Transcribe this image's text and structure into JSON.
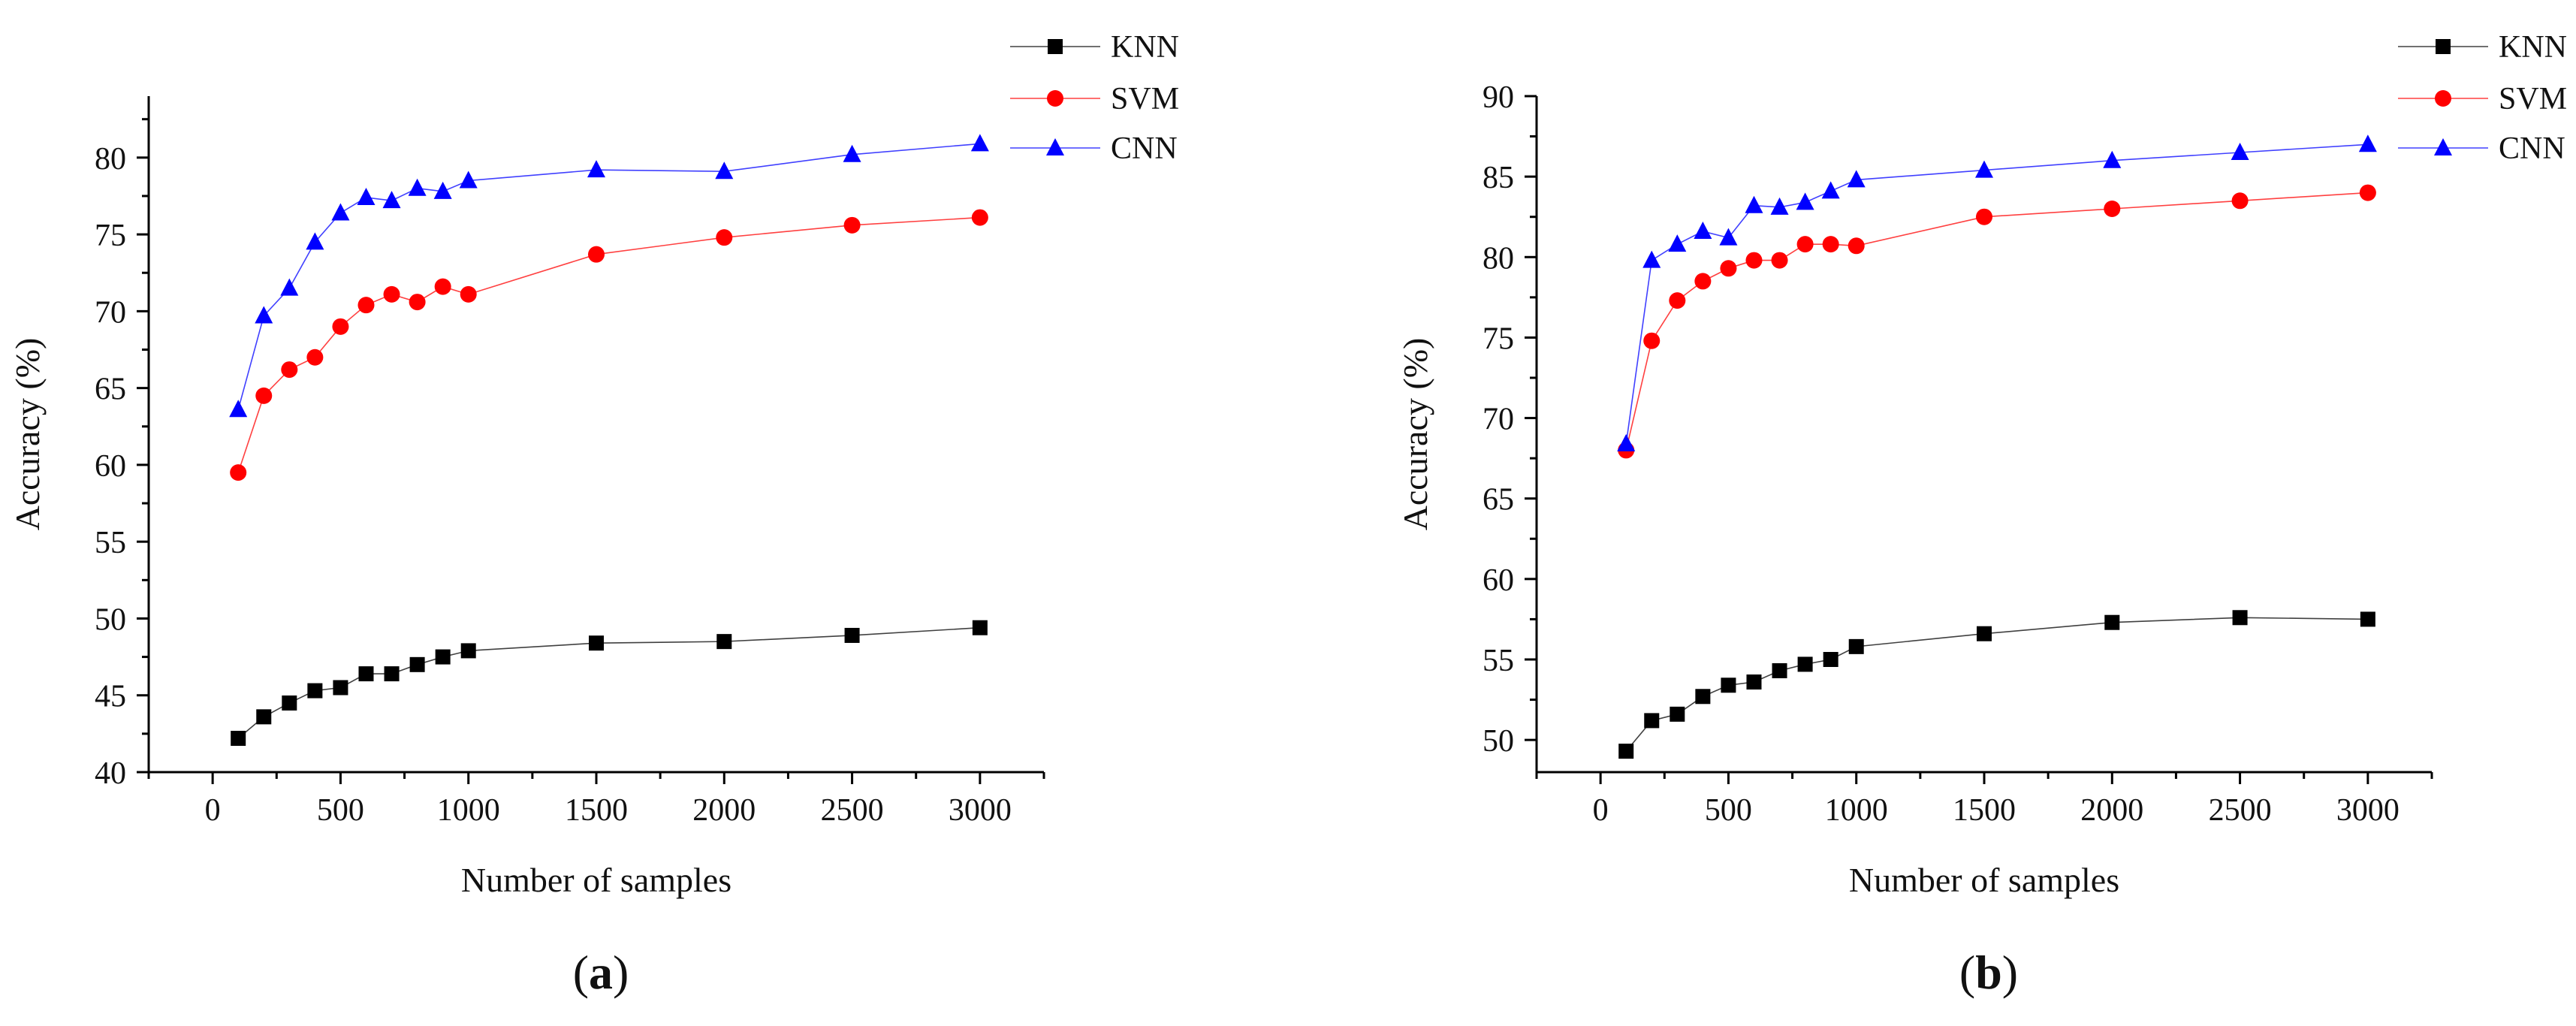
{
  "chart_data": [
    {
      "type": "line",
      "panel_label": "(a)",
      "panel_letter": "a",
      "xlabel": "Number of samples",
      "ylabel": "Accuracy (%)",
      "xlim": [
        -250,
        3250
      ],
      "ylim": [
        40,
        84
      ],
      "x_ticks": [
        0,
        500,
        1000,
        1500,
        2000,
        2500,
        3000
      ],
      "y_ticks": [
        40,
        45,
        50,
        55,
        60,
        65,
        70,
        75,
        80
      ],
      "legend_position": "top-right",
      "x": [
        100,
        200,
        300,
        400,
        500,
        600,
        700,
        800,
        900,
        1000,
        1500,
        2000,
        2500,
        3000
      ],
      "series": [
        {
          "name": "KNN",
          "color": "#000000",
          "marker": "square",
          "values": [
            42.2,
            43.6,
            44.5,
            45.3,
            45.5,
            46.4,
            46.4,
            47.0,
            47.5,
            47.9,
            48.4,
            48.5,
            48.9,
            49.4
          ]
        },
        {
          "name": "SVM",
          "color": "#ff0000",
          "marker": "circle",
          "values": [
            59.5,
            64.5,
            66.2,
            67.0,
            69.0,
            70.4,
            71.1,
            70.6,
            71.6,
            71.1,
            73.7,
            74.8,
            75.6,
            76.1
          ]
        },
        {
          "name": "CNN",
          "color": "#0000ff",
          "marker": "triangle",
          "values": [
            63.6,
            69.7,
            71.5,
            74.5,
            76.4,
            77.4,
            77.2,
            78.0,
            77.8,
            78.5,
            79.2,
            79.1,
            80.2,
            80.9
          ]
        }
      ]
    },
    {
      "type": "line",
      "panel_label": "(b)",
      "panel_letter": "b",
      "xlabel": "Number of samples",
      "ylabel": "Accuracy (%)",
      "xlim": [
        -250,
        3250
      ],
      "ylim": [
        48,
        90
      ],
      "x_ticks": [
        0,
        500,
        1000,
        1500,
        2000,
        2500,
        3000
      ],
      "y_ticks": [
        50,
        55,
        60,
        65,
        70,
        75,
        80,
        85,
        90
      ],
      "legend_position": "top-right",
      "x": [
        100,
        200,
        300,
        400,
        500,
        600,
        700,
        800,
        900,
        1000,
        1500,
        2000,
        2500,
        3000
      ],
      "series": [
        {
          "name": "KNN",
          "color": "#000000",
          "marker": "square",
          "values": [
            49.3,
            51.2,
            51.6,
            52.7,
            53.4,
            53.6,
            54.3,
            54.7,
            55.0,
            55.8,
            56.6,
            57.3,
            57.6,
            57.5
          ]
        },
        {
          "name": "SVM",
          "color": "#ff0000",
          "marker": "circle",
          "values": [
            68.0,
            74.8,
            77.3,
            78.5,
            79.3,
            79.8,
            79.8,
            80.8,
            80.8,
            80.7,
            82.5,
            83.0,
            83.5,
            84.0
          ]
        },
        {
          "name": "CNN",
          "color": "#0000ff",
          "marker": "triangle",
          "values": [
            68.4,
            79.8,
            80.8,
            81.6,
            81.2,
            83.2,
            83.1,
            83.4,
            84.1,
            84.8,
            85.4,
            86.0,
            86.5,
            87.0
          ]
        }
      ]
    }
  ]
}
